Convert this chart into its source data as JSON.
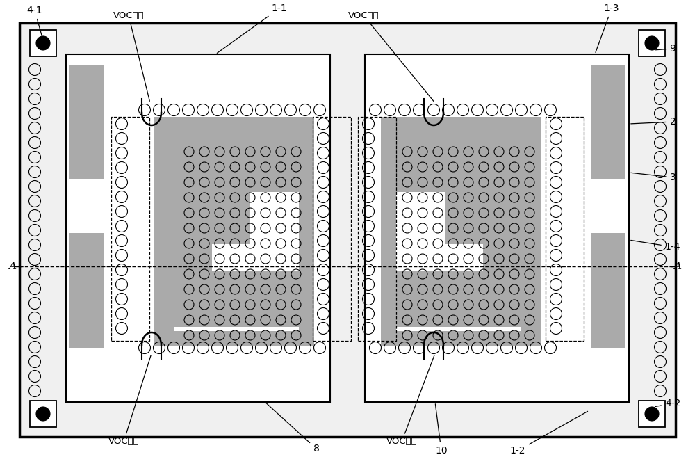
{
  "fig_width": 10.0,
  "fig_height": 6.57,
  "bg_color": "#ffffff",
  "gray_sensor": "#aaaaaa",
  "gray_bar": "#aaaaaa",
  "label_4_1": "4-1",
  "label_1_1": "1-1",
  "label_1_3": "1-3",
  "label_9": "9",
  "label_2": "2",
  "label_3": "3",
  "label_1_4": "1-4",
  "label_4_2": "4-2",
  "label_8": "8",
  "label_10": "10",
  "label_1_2": "1-2",
  "label_A": "A",
  "voc_out": "VOC输出",
  "voc_in": "VOC输入"
}
